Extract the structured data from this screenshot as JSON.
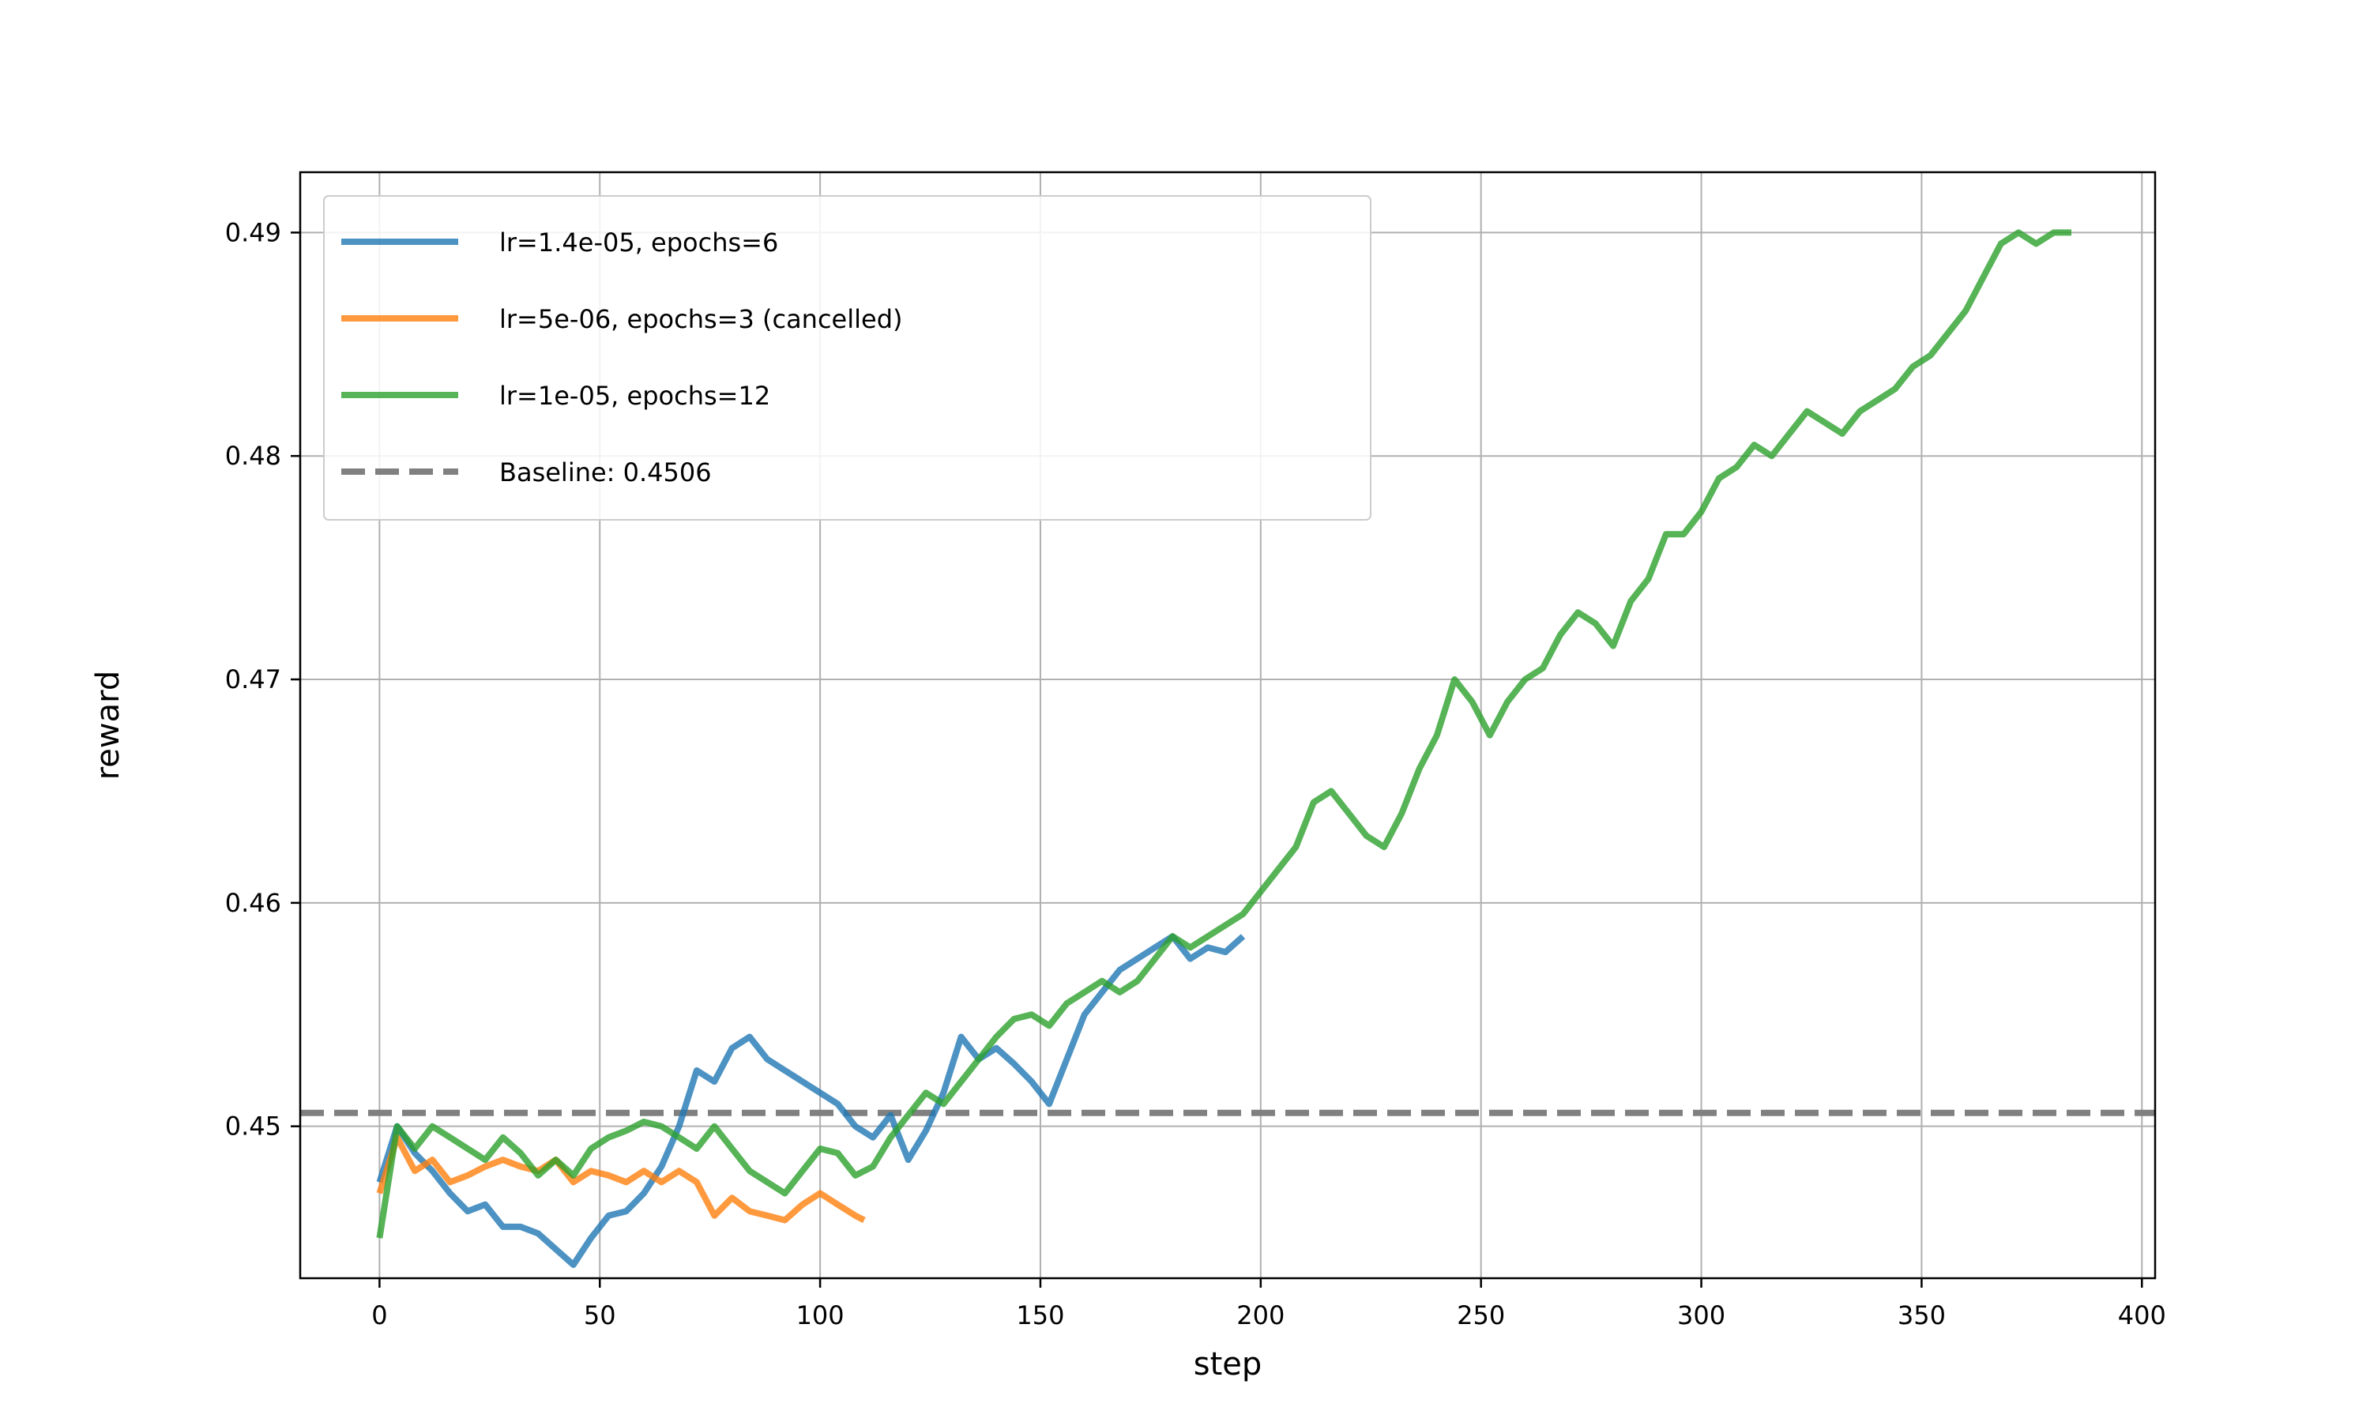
{
  "chart_data": {
    "type": "line",
    "xlabel": "step",
    "ylabel": "reward",
    "xlim": [
      -18,
      403
    ],
    "ylim": [
      0.4432,
      0.4927
    ],
    "xticks": [
      0,
      50,
      100,
      150,
      200,
      250,
      300,
      350,
      400
    ],
    "yticks": [
      0.45,
      0.46,
      0.47,
      0.48,
      0.49
    ],
    "xtick_labels": [
      "0",
      "50",
      "100",
      "150",
      "200",
      "250",
      "300",
      "350",
      "400"
    ],
    "ytick_labels": [
      "0.45",
      "0.46",
      "0.47",
      "0.48",
      "0.49"
    ],
    "grid": true,
    "legend_position": "upper-left",
    "series": [
      {
        "name": "lr=1.4e-05, epochs=6",
        "color": "#1f77b4",
        "style": "solid",
        "x": [
          0,
          4,
          8,
          12,
          16,
          20,
          24,
          28,
          32,
          36,
          40,
          44,
          48,
          52,
          56,
          60,
          64,
          68,
          72,
          76,
          80,
          84,
          88,
          92,
          96,
          100,
          104,
          108,
          112,
          116,
          120,
          124,
          128,
          132,
          136,
          140,
          144,
          148,
          152,
          156,
          160,
          164,
          168,
          172,
          176,
          180,
          184,
          188,
          192,
          196
        ],
        "y": [
          0.4475,
          0.45,
          0.4488,
          0.448,
          0.447,
          0.4462,
          0.4465,
          0.4455,
          0.4455,
          0.4452,
          0.4445,
          0.4438,
          0.445,
          0.446,
          0.4462,
          0.447,
          0.4482,
          0.45,
          0.4525,
          0.452,
          0.4535,
          0.454,
          0.453,
          0.4525,
          0.452,
          0.4515,
          0.451,
          0.45,
          0.4495,
          0.4505,
          0.4485,
          0.4498,
          0.4515,
          0.454,
          0.453,
          0.4535,
          0.4528,
          0.452,
          0.451,
          0.453,
          0.455,
          0.456,
          0.457,
          0.4575,
          0.458,
          0.4585,
          0.4575,
          0.458,
          0.4578,
          0.4585
        ]
      },
      {
        "name": "lr=5e-06, epochs=3 (cancelled)",
        "color": "#ff7f0e",
        "style": "solid",
        "x": [
          0,
          4,
          8,
          12,
          16,
          20,
          24,
          28,
          32,
          36,
          40,
          44,
          48,
          52,
          56,
          60,
          64,
          68,
          72,
          76,
          80,
          84,
          88,
          92,
          96,
          100,
          104,
          108,
          110
        ],
        "y": [
          0.447,
          0.4495,
          0.448,
          0.4485,
          0.4475,
          0.4478,
          0.4482,
          0.4485,
          0.4482,
          0.448,
          0.4485,
          0.4475,
          0.448,
          0.4478,
          0.4475,
          0.448,
          0.4475,
          0.448,
          0.4475,
          0.446,
          0.4468,
          0.4462,
          0.446,
          0.4458,
          0.4465,
          0.447,
          0.4465,
          0.446,
          0.4458
        ]
      },
      {
        "name": "lr=1e-05, epochs=12",
        "color": "#2ca02c",
        "style": "solid",
        "x": [
          0,
          4,
          8,
          12,
          16,
          20,
          24,
          28,
          32,
          36,
          40,
          44,
          48,
          52,
          56,
          60,
          64,
          68,
          72,
          76,
          80,
          84,
          88,
          92,
          96,
          100,
          104,
          108,
          112,
          116,
          120,
          124,
          128,
          132,
          136,
          140,
          144,
          148,
          152,
          156,
          160,
          164,
          168,
          172,
          176,
          180,
          184,
          188,
          192,
          196,
          200,
          204,
          208,
          212,
          216,
          220,
          224,
          228,
          232,
          236,
          240,
          244,
          248,
          252,
          256,
          260,
          264,
          268,
          272,
          276,
          280,
          284,
          288,
          292,
          296,
          300,
          304,
          308,
          312,
          316,
          320,
          324,
          328,
          332,
          336,
          340,
          344,
          348,
          352,
          356,
          360,
          364,
          368,
          372,
          376,
          380,
          384
        ],
        "y": [
          0.445,
          0.45,
          0.449,
          0.45,
          0.4495,
          0.449,
          0.4485,
          0.4495,
          0.4488,
          0.4478,
          0.4485,
          0.4478,
          0.449,
          0.4495,
          0.4498,
          0.4502,
          0.45,
          0.4495,
          0.449,
          0.45,
          0.449,
          0.448,
          0.4475,
          0.447,
          0.448,
          0.449,
          0.4488,
          0.4478,
          0.4482,
          0.4495,
          0.4505,
          0.4515,
          0.451,
          0.452,
          0.453,
          0.454,
          0.4548,
          0.455,
          0.4545,
          0.4555,
          0.456,
          0.4565,
          0.456,
          0.4565,
          0.4575,
          0.4585,
          0.458,
          0.4585,
          0.459,
          0.4595,
          0.4605,
          0.4615,
          0.4625,
          0.4645,
          0.465,
          0.464,
          0.463,
          0.4625,
          0.464,
          0.466,
          0.4675,
          0.47,
          0.469,
          0.4675,
          0.469,
          0.47,
          0.4705,
          0.472,
          0.473,
          0.4725,
          0.4715,
          0.4735,
          0.4745,
          0.4765,
          0.4765,
          0.4775,
          0.479,
          0.4795,
          0.4805,
          0.48,
          0.481,
          0.482,
          0.4815,
          0.481,
          0.482,
          0.4825,
          0.483,
          0.484,
          0.4845,
          0.4855,
          0.4865,
          0.488,
          0.4895,
          0.49,
          0.4895,
          0.49,
          0.49
        ]
      },
      {
        "name": "Baseline: 0.4506",
        "color": "#808080",
        "style": "dashed",
        "x": [
          -18,
          403
        ],
        "y": [
          0.4506,
          0.4506
        ]
      }
    ]
  }
}
